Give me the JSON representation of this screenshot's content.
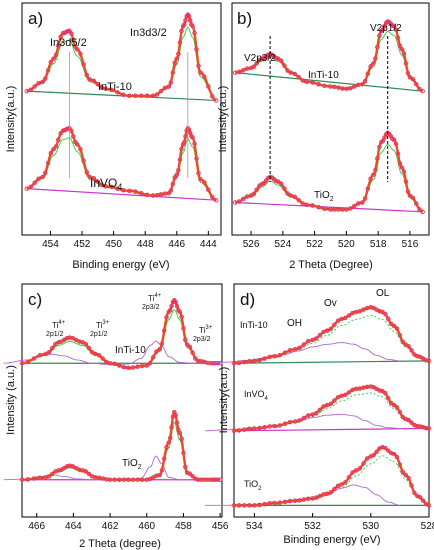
{
  "chart_data": [
    {
      "panel": "a)",
      "type": "line",
      "xlabel": "Binding energy (eV)",
      "ylabel": "Intensity(a.u.)",
      "xlim": [
        455.8,
        443.2
      ],
      "ylim": [
        0,
        1
      ],
      "xticks": [
        454,
        452,
        450,
        448,
        446,
        444
      ],
      "annotations": [
        "In3d5/2",
        "In3d3/2",
        "InTi-10",
        "InVO4"
      ],
      "series": [
        {
          "name": "InTi-10",
          "x": [
            455.5,
            454.5,
            453.8,
            453.2,
            452.8,
            452.3,
            451.5,
            450.5,
            449,
            447.5,
            446.5,
            446,
            445.6,
            445.3,
            445,
            444.5,
            443.5
          ],
          "values": [
            0.62,
            0.66,
            0.76,
            0.87,
            0.88,
            0.8,
            0.67,
            0.63,
            0.6,
            0.6,
            0.64,
            0.76,
            0.9,
            0.95,
            0.9,
            0.7,
            0.58
          ]
        },
        {
          "name": "InVO4",
          "x": [
            455.5,
            454.5,
            453.8,
            453.2,
            452.8,
            452.3,
            451.5,
            450.5,
            449,
            447.5,
            446.5,
            446,
            445.6,
            445.3,
            445,
            444.5,
            443.5
          ],
          "values": [
            0.2,
            0.25,
            0.37,
            0.45,
            0.46,
            0.39,
            0.25,
            0.21,
            0.19,
            0.17,
            0.18,
            0.26,
            0.39,
            0.46,
            0.42,
            0.24,
            0.15
          ]
        }
      ]
    },
    {
      "panel": "b)",
      "type": "line",
      "xlabel": "2 Theta (Degree)",
      "ylabel": "Intensity(a.u.)",
      "xlim": [
        527.2,
        514.8
      ],
      "ylim": [
        0,
        1
      ],
      "xticks": [
        526,
        524,
        522,
        520,
        518,
        516
      ],
      "annotations": [
        "V2p3/2",
        "V2p1/2",
        "InTi-10",
        "TiO2"
      ],
      "series": [
        {
          "name": "InTi-10",
          "x": [
            527,
            526,
            525.3,
            524.8,
            524.3,
            523.5,
            522.5,
            521,
            520,
            519,
            518.3,
            517.8,
            517.4,
            517,
            516.5,
            516,
            515.2
          ],
          "values": [
            0.7,
            0.72,
            0.76,
            0.78,
            0.76,
            0.7,
            0.66,
            0.64,
            0.63,
            0.65,
            0.74,
            0.88,
            0.92,
            0.9,
            0.8,
            0.68,
            0.62
          ]
        },
        {
          "name": "TiO2",
          "x": [
            527,
            526,
            525.3,
            524.8,
            524.3,
            523.5,
            522.5,
            521,
            520,
            519,
            518.3,
            517.8,
            517.4,
            517,
            516.5,
            516,
            515.2
          ],
          "values": [
            0.14,
            0.17,
            0.22,
            0.25,
            0.23,
            0.17,
            0.13,
            0.11,
            0.11,
            0.14,
            0.26,
            0.4,
            0.44,
            0.41,
            0.29,
            0.17,
            0.1
          ]
        }
      ]
    },
    {
      "panel": "c)",
      "type": "line",
      "xlabel": "2 Theta (degree)",
      "ylabel": "Intensity (a.u.)",
      "xlim": [
        466.8,
        455.9
      ],
      "ylim": [
        0,
        1
      ],
      "xticks": [
        466,
        464,
        462,
        460,
        458,
        456
      ],
      "annotations": [
        "Ti4+ 2p1/2",
        "Ti3+ 2p1/2",
        "InTi-10",
        "Ti4+ 2p3/2",
        "Ti3+ 2p3/2",
        "TiO2"
      ],
      "series": [
        {
          "name": "InTi-10",
          "x": [
            466.8,
            465.5,
            464.8,
            464.2,
            463.5,
            462.8,
            462,
            461,
            460,
            459.3,
            458.8,
            458.5,
            458.2,
            457.8,
            457.2,
            456.5,
            456
          ],
          "values": [
            0.66,
            0.7,
            0.75,
            0.77,
            0.75,
            0.7,
            0.66,
            0.64,
            0.65,
            0.72,
            0.88,
            0.93,
            0.88,
            0.74,
            0.67,
            0.66,
            0.66
          ]
        },
        {
          "name": "TiO2",
          "x": [
            466.8,
            465.5,
            464.8,
            464.2,
            463.5,
            462.8,
            462,
            461,
            460,
            459.3,
            458.8,
            458.5,
            458.2,
            457.8,
            457.2,
            456.5,
            456
          ],
          "values": [
            0.16,
            0.17,
            0.2,
            0.22,
            0.2,
            0.17,
            0.16,
            0.16,
            0.16,
            0.18,
            0.32,
            0.45,
            0.36,
            0.19,
            0.16,
            0.16,
            0.16
          ]
        }
      ]
    },
    {
      "panel": "d)",
      "type": "line",
      "xlabel": "Binding energy (eV)",
      "ylabel": "Intensity(a.u.)",
      "xlim": [
        534.7,
        528
      ],
      "ylim": [
        0,
        1
      ],
      "xticks": [
        534,
        532,
        530,
        528
      ],
      "annotations": [
        "OH",
        "Ov",
        "OL",
        "InTi-10",
        "InVO4",
        "TiO2"
      ],
      "series": [
        {
          "name": "InTi-10",
          "x": [
            534.7,
            534,
            533.3,
            532.6,
            532,
            531.5,
            531,
            530.5,
            530,
            529.6,
            529.2,
            528.8,
            528.4,
            528
          ],
          "values": [
            0.66,
            0.67,
            0.69,
            0.72,
            0.76,
            0.8,
            0.85,
            0.88,
            0.9,
            0.88,
            0.82,
            0.74,
            0.69,
            0.67
          ]
        },
        {
          "name": "InVO4",
          "x": [
            534.7,
            534,
            533.3,
            532.6,
            532,
            531.5,
            531,
            530.5,
            530,
            529.6,
            529.2,
            528.8,
            528.4,
            528
          ],
          "values": [
            0.37,
            0.38,
            0.39,
            0.41,
            0.44,
            0.48,
            0.52,
            0.55,
            0.56,
            0.54,
            0.48,
            0.42,
            0.39,
            0.38
          ]
        },
        {
          "name": "TiO2",
          "x": [
            534.7,
            534,
            533.3,
            532.6,
            532,
            531.5,
            531,
            530.5,
            530,
            529.6,
            529.2,
            528.8,
            528.4,
            528
          ],
          "values": [
            0.05,
            0.05,
            0.06,
            0.07,
            0.08,
            0.1,
            0.14,
            0.2,
            0.26,
            0.3,
            0.27,
            0.18,
            0.09,
            0.05
          ]
        }
      ]
    }
  ],
  "labels": {
    "a": {
      "panel": "a)",
      "p1": "In3d5/2",
      "p2": "In3d3/2",
      "s1": "InTi-10",
      "s2": "InVO",
      "s2sub": "4",
      "xlabel": "Binding energy (eV)",
      "ylabel": "Intensity(a.u.)"
    },
    "b": {
      "panel": "b)",
      "p1": "V2p3/2",
      "p2": "V2p1/2",
      "s1": "InTi-10",
      "s2": "TiO",
      "s2sub": "2",
      "xlabel": "2 Theta (Degree)",
      "ylabel": "Intensity(a.u.)"
    },
    "c": {
      "panel": "c)",
      "t1a": "Ti",
      "t1s": "4+",
      "t1b": "2p1/2",
      "t2a": "Ti",
      "t2s": "3+",
      "t2b": "2p1/2",
      "t3a": "Ti",
      "t3s": "4+",
      "t3b": "2p3/2",
      "t4a": "Ti",
      "t4s": "3+",
      "t4b": "2p3/2",
      "s1": "InTi-10",
      "s2": "TiO",
      "s2sub": "2",
      "xlabel": "2 Theta (degree)",
      "ylabel": "Intensity (a.u.)"
    },
    "d": {
      "panel": "d)",
      "oh": "OH",
      "ov": "Ov",
      "ol": "OL",
      "s1": "InTi-10",
      "s2": "InVO",
      "s2sub": "4",
      "s3": "TiO",
      "s3sub": "2",
      "xlabel": "Binding energy (eV)",
      "ylabel": "Intensity(a.u.)"
    }
  },
  "colors": {
    "data_marker": "#e8336b",
    "envelope": "#e8501e",
    "baseline_a": "#2e8b57",
    "baseline_b": "#cc33cc",
    "component_green": "#2ecc40",
    "component_purple": "#b266d6",
    "component_gray": "#888888"
  }
}
